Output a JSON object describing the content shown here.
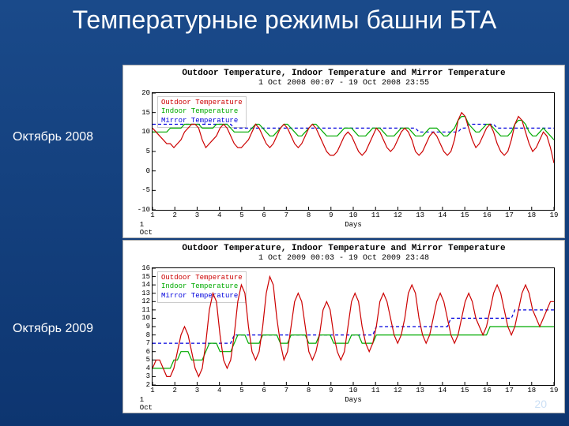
{
  "slide": {
    "title": "Температурные режимы башни БТА",
    "background_top": "#1a4a8a",
    "background_bottom": "#0d3570",
    "page_number": "20"
  },
  "labels": {
    "left_top": "Октябрь 2008",
    "left_bottom": "Октябрь 2009"
  },
  "common": {
    "chart_title": "Outdoor Temperature, Indoor Temperature and Mirror Temperature",
    "x_axis_label": "Days",
    "origin_label": "1 Oct",
    "legend": {
      "outdoor": {
        "label": "Outdoor Temperature",
        "color": "#cc0000"
      },
      "indoor": {
        "label": "Indoor Temperature",
        "color": "#00aa00"
      },
      "mirror": {
        "label": "Mirror Temperature",
        "color": "#0000dd"
      }
    },
    "x_ticks": [
      1,
      2,
      3,
      4,
      5,
      6,
      7,
      8,
      9,
      10,
      11,
      12,
      13,
      14,
      15,
      16,
      17,
      18,
      19
    ],
    "line_width": 1.2,
    "grid_color": "#000000",
    "background_color": "#ffffff",
    "tick_fontsize": 9,
    "title_fontsize": 11
  },
  "chart_2008": {
    "subtitle": "1 Oct 2008 00:07  -  19 Oct 2008 23:55",
    "ylim": [
      -10,
      20
    ],
    "y_ticks": [
      -10,
      -5,
      0,
      5,
      10,
      15,
      20
    ],
    "series": {
      "outdoor": [
        11,
        10,
        9,
        8,
        7,
        7,
        6,
        7,
        8,
        10,
        11,
        12,
        12,
        11,
        8,
        6,
        7,
        8,
        9,
        11,
        12,
        11,
        9,
        7,
        6,
        6,
        7,
        8,
        10,
        12,
        11,
        9,
        7,
        6,
        7,
        9,
        11,
        12,
        11,
        9,
        7,
        6,
        7,
        9,
        11,
        12,
        11,
        9,
        7,
        5,
        4,
        4,
        5,
        7,
        9,
        10,
        9,
        7,
        5,
        4,
        5,
        7,
        9,
        11,
        10,
        8,
        6,
        5,
        6,
        8,
        10,
        11,
        10,
        8,
        5,
        4,
        5,
        7,
        9,
        10,
        9,
        7,
        5,
        4,
        5,
        8,
        13,
        15,
        14,
        11,
        8,
        6,
        7,
        9,
        11,
        12,
        10,
        7,
        5,
        4,
        5,
        8,
        12,
        14,
        13,
        10,
        7,
        5,
        6,
        8,
        10,
        9,
        6,
        2
      ],
      "indoor": [
        10,
        10,
        10,
        10,
        10,
        11,
        11,
        11,
        11,
        12,
        12,
        12,
        12,
        12,
        11,
        11,
        11,
        11,
        12,
        12,
        12,
        12,
        11,
        10,
        10,
        10,
        10,
        10,
        11,
        12,
        12,
        11,
        10,
        9,
        9,
        10,
        11,
        12,
        12,
        11,
        10,
        9,
        9,
        10,
        11,
        12,
        12,
        11,
        10,
        9,
        9,
        9,
        9,
        10,
        11,
        11,
        11,
        10,
        9,
        9,
        9,
        10,
        11,
        11,
        11,
        10,
        9,
        9,
        9,
        10,
        11,
        11,
        11,
        10,
        9,
        9,
        9,
        10,
        11,
        11,
        11,
        10,
        9,
        9,
        10,
        11,
        13,
        14,
        14,
        12,
        11,
        10,
        10,
        11,
        12,
        12,
        11,
        10,
        9,
        9,
        9,
        10,
        12,
        13,
        13,
        12,
        10,
        9,
        9,
        10,
        11,
        10,
        9,
        8
      ],
      "mirror": [
        12,
        12,
        12,
        12,
        12,
        12,
        12,
        12,
        12,
        12,
        12,
        12,
        12,
        12,
        12,
        12,
        12,
        12,
        12,
        12,
        12,
        12,
        12,
        11,
        11,
        11,
        11,
        11,
        11,
        11,
        11,
        11,
        11,
        11,
        11,
        11,
        11,
        11,
        11,
        11,
        11,
        11,
        11,
        11,
        11,
        11,
        11,
        11,
        11,
        11,
        11,
        11,
        11,
        11,
        11,
        11,
        11,
        11,
        11,
        11,
        11,
        11,
        11,
        11,
        11,
        11,
        11,
        11,
        11,
        11,
        11,
        11,
        11,
        11,
        11,
        10,
        10,
        10,
        10,
        10,
        10,
        10,
        10,
        10,
        10,
        10,
        10,
        11,
        11,
        12,
        12,
        12,
        12,
        12,
        12,
        12,
        12,
        11,
        11,
        11,
        11,
        11,
        11,
        11,
        11,
        11,
        11,
        11,
        11,
        11,
        11,
        11,
        11,
        11
      ]
    }
  },
  "chart_2009": {
    "subtitle": "1 Oct 2009 00:03  -  19 Oct 2009 23:48",
    "ylim": [
      2,
      16
    ],
    "y_ticks": [
      2,
      3,
      4,
      5,
      6,
      7,
      8,
      9,
      10,
      11,
      12,
      13,
      14,
      15,
      16
    ],
    "series": {
      "outdoor": [
        4,
        5,
        5,
        4,
        3,
        3,
        4,
        6,
        8,
        9,
        8,
        6,
        4,
        3,
        4,
        7,
        11,
        13,
        12,
        8,
        5,
        4,
        5,
        8,
        12,
        14,
        13,
        9,
        6,
        5,
        6,
        9,
        13,
        15,
        14,
        10,
        7,
        5,
        6,
        9,
        12,
        13,
        12,
        9,
        6,
        5,
        6,
        8,
        11,
        12,
        11,
        8,
        6,
        5,
        6,
        9,
        12,
        13,
        12,
        9,
        7,
        6,
        7,
        9,
        12,
        13,
        12,
        10,
        8,
        7,
        8,
        10,
        13,
        14,
        13,
        10,
        8,
        7,
        8,
        10,
        12,
        13,
        12,
        10,
        8,
        7,
        8,
        10,
        12,
        13,
        12,
        10,
        9,
        8,
        9,
        11,
        13,
        14,
        13,
        11,
        9,
        8,
        9,
        11,
        13,
        14,
        13,
        11,
        10,
        9,
        10,
        11,
        12,
        12
      ],
      "indoor": [
        4,
        4,
        4,
        4,
        4,
        4,
        5,
        5,
        6,
        6,
        6,
        5,
        5,
        5,
        5,
        6,
        7,
        7,
        7,
        6,
        6,
        6,
        6,
        7,
        8,
        8,
        8,
        7,
        7,
        7,
        7,
        8,
        8,
        8,
        8,
        8,
        7,
        7,
        7,
        8,
        8,
        8,
        8,
        8,
        7,
        7,
        7,
        8,
        8,
        8,
        8,
        7,
        7,
        7,
        7,
        7,
        8,
        8,
        8,
        7,
        7,
        7,
        7,
        8,
        8,
        8,
        8,
        8,
        8,
        8,
        8,
        8,
        8,
        8,
        8,
        8,
        8,
        8,
        8,
        8,
        8,
        8,
        8,
        8,
        8,
        8,
        8,
        8,
        8,
        8,
        8,
        8,
        8,
        8,
        8,
        9,
        9,
        9,
        9,
        9,
        9,
        9,
        9,
        9,
        9,
        9,
        9,
        9,
        9,
        9,
        9,
        9,
        9,
        9
      ],
      "mirror": [
        7,
        7,
        7,
        7,
        7,
        7,
        7,
        7,
        7,
        7,
        7,
        7,
        7,
        7,
        7,
        7,
        7,
        7,
        7,
        7,
        7,
        7,
        7,
        8,
        8,
        8,
        8,
        8,
        8,
        8,
        8,
        8,
        8,
        8,
        8,
        8,
        8,
        8,
        8,
        8,
        8,
        8,
        8,
        8,
        8,
        8,
        8,
        8,
        8,
        8,
        8,
        8,
        8,
        8,
        8,
        8,
        8,
        8,
        8,
        8,
        8,
        8,
        8,
        9,
        9,
        9,
        9,
        9,
        9,
        9,
        9,
        9,
        9,
        9,
        9,
        9,
        9,
        9,
        9,
        9,
        9,
        9,
        9,
        9,
        10,
        10,
        10,
        10,
        10,
        10,
        10,
        10,
        10,
        10,
        10,
        10,
        10,
        10,
        10,
        10,
        10,
        10,
        11,
        11,
        11,
        11,
        11,
        11,
        11,
        11,
        11,
        11,
        11,
        11
      ]
    }
  }
}
